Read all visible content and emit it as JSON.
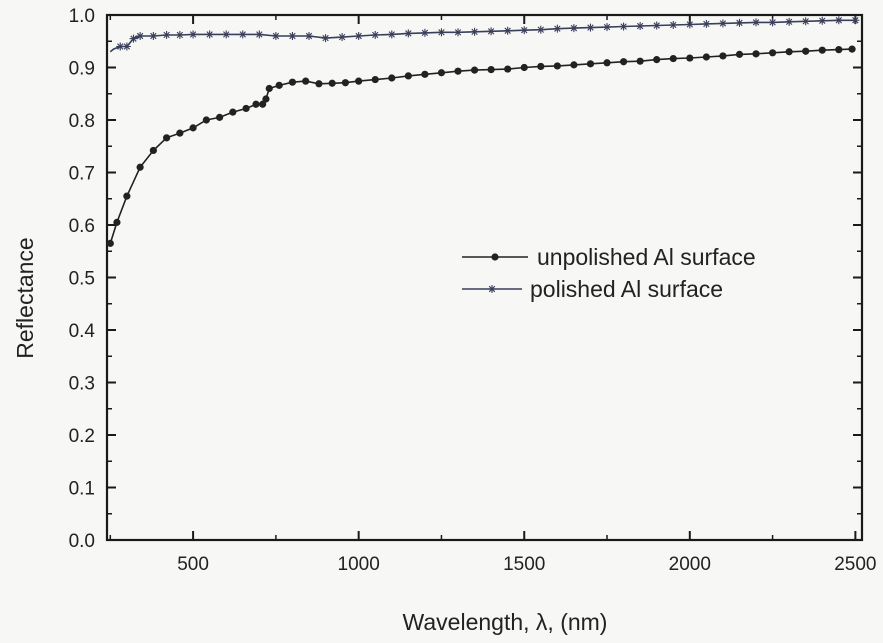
{
  "chart_data": {
    "type": "line",
    "xlabel": "Wavelength, λ, (nm)",
    "ylabel": "Reflectance",
    "xlim": [
      240,
      2520
    ],
    "ylim": [
      0.0,
      1.0
    ],
    "x_ticks": [
      500,
      1000,
      1500,
      2000,
      2500
    ],
    "x_tick_labels": [
      "500",
      "1000",
      "1500",
      "2000",
      "2500"
    ],
    "y_ticks": [
      0.0,
      0.1,
      0.2,
      0.3,
      0.4,
      0.5,
      0.6,
      0.7,
      0.8,
      0.9,
      1.0
    ],
    "y_tick_labels": [
      "0.0",
      "0.1",
      "0.2",
      "0.3",
      "0.4",
      "0.5",
      "0.6",
      "0.7",
      "0.8",
      "0.9",
      "1.0"
    ],
    "grid": false,
    "legend_position": "center-right",
    "series": [
      {
        "name": "unpolished Al surface",
        "marker": "circle",
        "color": "#222222",
        "x": [
          250,
          270,
          300,
          340,
          380,
          420,
          460,
          500,
          540,
          580,
          620,
          660,
          690,
          710,
          720,
          730,
          760,
          800,
          840,
          880,
          920,
          960,
          1000,
          1050,
          1100,
          1150,
          1200,
          1250,
          1300,
          1350,
          1400,
          1450,
          1500,
          1550,
          1600,
          1650,
          1700,
          1750,
          1800,
          1850,
          1900,
          1950,
          2000,
          2050,
          2100,
          2150,
          2200,
          2250,
          2300,
          2350,
          2400,
          2450,
          2490
        ],
        "y": [
          0.565,
          0.605,
          0.655,
          0.71,
          0.742,
          0.766,
          0.775,
          0.785,
          0.8,
          0.805,
          0.815,
          0.822,
          0.83,
          0.83,
          0.84,
          0.86,
          0.866,
          0.872,
          0.874,
          0.869,
          0.87,
          0.871,
          0.874,
          0.877,
          0.88,
          0.884,
          0.887,
          0.89,
          0.893,
          0.895,
          0.896,
          0.897,
          0.9,
          0.902,
          0.903,
          0.905,
          0.907,
          0.909,
          0.911,
          0.912,
          0.915,
          0.917,
          0.918,
          0.92,
          0.922,
          0.925,
          0.926,
          0.928,
          0.93,
          0.931,
          0.933,
          0.934,
          0.935
        ]
      },
      {
        "name": "polished Al surface",
        "marker": "star",
        "color": "#3a3f5a",
        "x": [
          250,
          260,
          280,
          300,
          320,
          340,
          380,
          420,
          460,
          500,
          550,
          600,
          650,
          700,
          750,
          800,
          850,
          900,
          950,
          1000,
          1050,
          1100,
          1150,
          1200,
          1250,
          1300,
          1350,
          1400,
          1450,
          1500,
          1550,
          1600,
          1650,
          1700,
          1750,
          1800,
          1850,
          1900,
          1950,
          2000,
          2050,
          2100,
          2150,
          2200,
          2250,
          2300,
          2350,
          2400,
          2450,
          2500
        ],
        "y": [
          0.93,
          0.935,
          0.94,
          0.94,
          0.955,
          0.96,
          0.96,
          0.962,
          0.962,
          0.963,
          0.963,
          0.963,
          0.963,
          0.963,
          0.96,
          0.96,
          0.96,
          0.956,
          0.958,
          0.96,
          0.962,
          0.963,
          0.965,
          0.966,
          0.967,
          0.967,
          0.968,
          0.969,
          0.97,
          0.971,
          0.972,
          0.974,
          0.975,
          0.976,
          0.977,
          0.978,
          0.979,
          0.98,
          0.981,
          0.982,
          0.983,
          0.984,
          0.985,
          0.986,
          0.986,
          0.987,
          0.988,
          0.989,
          0.99,
          0.99
        ]
      }
    ]
  }
}
